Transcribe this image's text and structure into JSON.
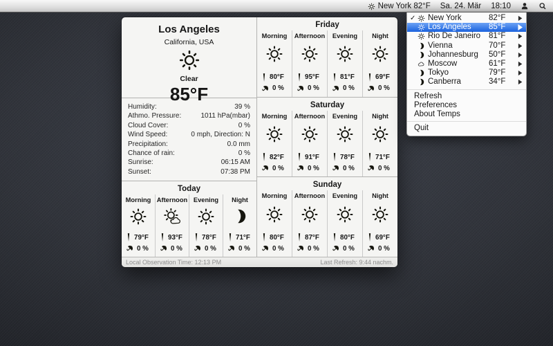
{
  "menu_bar": {
    "status_icon": "sun",
    "status_title": "New York 82°F",
    "date": "Sa. 24. Mär",
    "time": "18:10"
  },
  "dropdown": {
    "check_glyph": "✓",
    "cities": [
      {
        "checked": true,
        "selected": false,
        "icon": "sun",
        "name": "New York",
        "temp": "82°F"
      },
      {
        "checked": false,
        "selected": true,
        "icon": "sun",
        "name": "Los Angeles",
        "temp": "85°F"
      },
      {
        "checked": false,
        "selected": false,
        "icon": "sun",
        "name": "Rio De Janeiro",
        "temp": "81°F"
      },
      {
        "checked": false,
        "selected": false,
        "icon": "moon",
        "name": "Vienna",
        "temp": "70°F"
      },
      {
        "checked": false,
        "selected": false,
        "icon": "moon",
        "name": "Johannesburg",
        "temp": "50°F"
      },
      {
        "checked": false,
        "selected": false,
        "icon": "cloud",
        "name": "Moscow",
        "temp": "61°F"
      },
      {
        "checked": false,
        "selected": false,
        "icon": "moon",
        "name": "Tokyo",
        "temp": "79°F"
      },
      {
        "checked": false,
        "selected": false,
        "icon": "moon",
        "name": "Canberra",
        "temp": "34°F"
      }
    ],
    "actions": [
      "Refresh",
      "Preferences",
      "About Temps"
    ],
    "quit": "Quit"
  },
  "panel": {
    "city": "Los Angeles",
    "region": "California, USA",
    "condition_icon": "sun",
    "condition": "Clear",
    "temperature": "85°F",
    "details": [
      {
        "label": "Humidity:",
        "value": "39 %"
      },
      {
        "label": "Athmo. Pressure:",
        "value": "1011 hPa(mbar)"
      },
      {
        "label": "Cloud Cover:",
        "value": "0 %"
      },
      {
        "label": "Wind Speed:",
        "value": "0 mph, Direction: N"
      },
      {
        "label": "Precipitation:",
        "value": "0.0 mm"
      },
      {
        "label": "Chance of rain:",
        "value": "0 %"
      },
      {
        "label": "Sunrise:",
        "value": "06:15 AM"
      },
      {
        "label": "Sunset:",
        "value": "07:38 PM"
      }
    ],
    "today": {
      "title": "Today",
      "periods": [
        {
          "label": "Morning",
          "icon": "sun",
          "temp": "79°F",
          "rain": "0 %"
        },
        {
          "label": "Afternoon",
          "icon": "sun-cloud",
          "temp": "93°F",
          "rain": "0 %"
        },
        {
          "label": "Evening",
          "icon": "sun",
          "temp": "78°F",
          "rain": "0 %"
        },
        {
          "label": "Night",
          "icon": "moon",
          "temp": "71°F",
          "rain": "0 %"
        }
      ]
    },
    "days": [
      {
        "title": "Friday",
        "periods": [
          {
            "label": "Morning",
            "icon": "sun",
            "temp": "80°F",
            "rain": "0 %"
          },
          {
            "label": "Afternoon",
            "icon": "sun",
            "temp": "95°F",
            "rain": "0 %"
          },
          {
            "label": "Evening",
            "icon": "sun",
            "temp": "81°F",
            "rain": "0 %"
          },
          {
            "label": "Night",
            "icon": "sun",
            "temp": "69°F",
            "rain": "0 %"
          }
        ]
      },
      {
        "title": "Saturday",
        "periods": [
          {
            "label": "Morning",
            "icon": "sun",
            "temp": "82°F",
            "rain": "0 %"
          },
          {
            "label": "Afternoon",
            "icon": "sun",
            "temp": "91°F",
            "rain": "0 %"
          },
          {
            "label": "Evening",
            "icon": "sun",
            "temp": "78°F",
            "rain": "0 %"
          },
          {
            "label": "Night",
            "icon": "sun",
            "temp": "71°F",
            "rain": "0 %"
          }
        ]
      },
      {
        "title": "Sunday",
        "periods": [
          {
            "label": "Morning",
            "icon": "sun",
            "temp": "80°F",
            "rain": "0 %"
          },
          {
            "label": "Afternoon",
            "icon": "sun",
            "temp": "87°F",
            "rain": "0 %"
          },
          {
            "label": "Evening",
            "icon": "sun",
            "temp": "80°F",
            "rain": "0 %"
          },
          {
            "label": "Night",
            "icon": "sun",
            "temp": "69°F",
            "rain": "0 %"
          }
        ]
      }
    ],
    "footer": {
      "left": "Local Observation Time: 12:13 PM",
      "right": "Last Refresh: 9:44 nachm."
    }
  }
}
